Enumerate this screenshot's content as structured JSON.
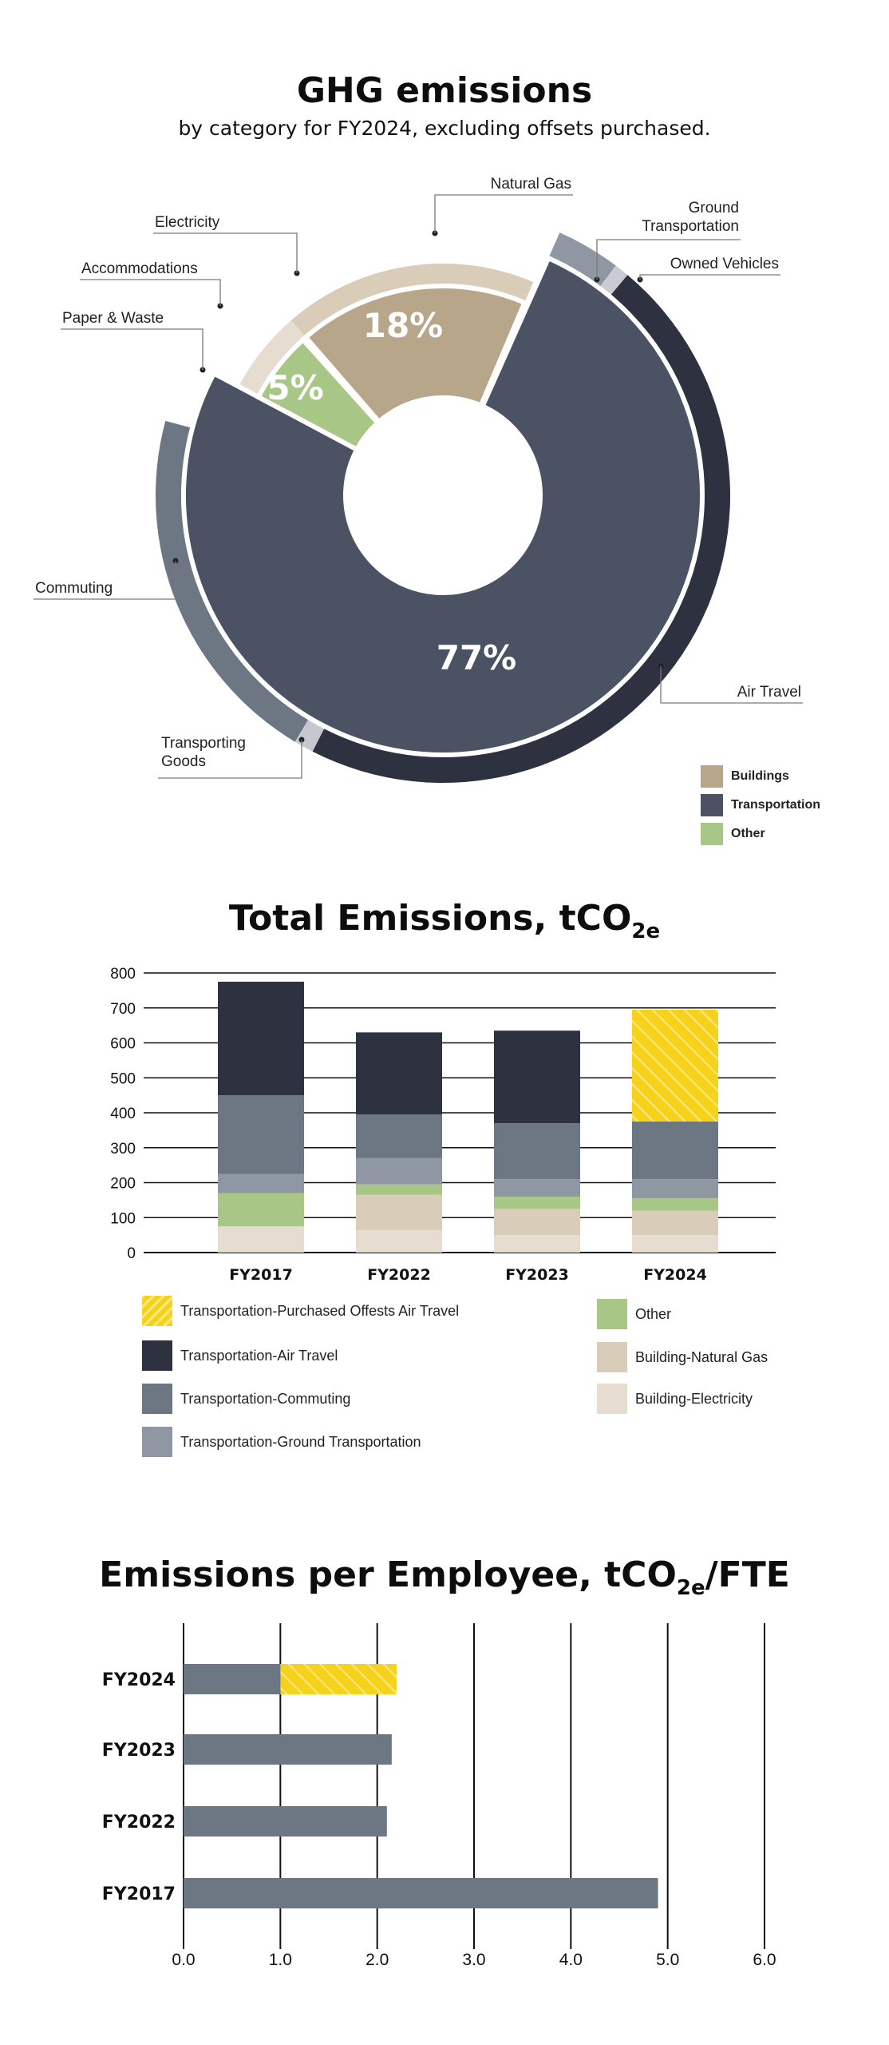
{
  "chart_data": [
    {
      "type": "pie",
      "title": "GHG emissions",
      "subtitle": "by category for FY2024, excluding offsets purchased.",
      "groups": [
        {
          "name": "Buildings",
          "percent_label": "18%",
          "value": 18,
          "color": "#b8a68a"
        },
        {
          "name": "Transportation",
          "percent_label": "77%",
          "value": 77,
          "color": "#4a5263"
        },
        {
          "name": "Other",
          "percent_label": "5%",
          "value": 5,
          "color": "#a8c686"
        }
      ],
      "categories": [
        {
          "label": "Natural Gas",
          "group": "Buildings",
          "color": "#d9ccb8"
        },
        {
          "label": "Electricity",
          "group": "Buildings",
          "color": "#e6ddd0"
        },
        {
          "label": "Accommodations",
          "group": "Other",
          "color": "#bcd5a2"
        },
        {
          "label": "Paper & Waste",
          "group": "Other",
          "color": "#d3e5c0"
        },
        {
          "label": "Commuting",
          "group": "Transportation",
          "color": "#6d7683"
        },
        {
          "label": "Transporting Goods",
          "group": "Transportation",
          "color": "#c5c9cf"
        },
        {
          "label": "Air Travel",
          "group": "Transportation",
          "color": "#2d3140"
        },
        {
          "label": "Owned Vehicles",
          "group": "Transportation",
          "color": "#c8ccd2"
        },
        {
          "label": "Ground Transportation",
          "group": "Transportation",
          "color": "#8f97a2"
        }
      ],
      "legend": [
        "Buildings",
        "Transportation",
        "Other"
      ],
      "legend_position": "bottom-right"
    },
    {
      "type": "bar",
      "stacked": true,
      "title_main": "Total Emissions, tCO",
      "title_sub": "2e",
      "categories": [
        "FY2017",
        "FY2022",
        "FY2023",
        "FY2024"
      ],
      "yticks": [
        0,
        100,
        200,
        300,
        400,
        500,
        600,
        700,
        800
      ],
      "ylim": [
        0,
        800
      ],
      "grid": true,
      "series": [
        {
          "name": "Building-Electricity",
          "color": "#e6ddd0",
          "values": [
            75,
            65,
            50,
            50
          ]
        },
        {
          "name": "Building-Natural Gas",
          "color": "#d9ccb8",
          "values": [
            0,
            100,
            75,
            70
          ]
        },
        {
          "name": "Other",
          "color": "#a8c686",
          "values": [
            95,
            30,
            35,
            35
          ]
        },
        {
          "name": "Transportation-Ground Transportation",
          "color": "#8f97a2",
          "values": [
            55,
            75,
            50,
            55
          ]
        },
        {
          "name": "Transportation-Commuting",
          "color": "#6d7683",
          "values": [
            225,
            125,
            160,
            165
          ]
        },
        {
          "name": "Transportation-Air Travel",
          "color": "#2d3140",
          "values": [
            325,
            235,
            265,
            0
          ]
        },
        {
          "name": "Transportation-Purchased Offests Air Travel",
          "color": "#f7d21a",
          "values": [
            0,
            0,
            0,
            320
          ],
          "hatched": true
        }
      ],
      "legend_order": [
        "Transportation-Purchased Offests Air Travel",
        "Transportation-Air Travel",
        "Transportation-Commuting",
        "Transportation-Ground Transportation",
        "Other",
        "Building-Natural Gas",
        "Building-Electricity"
      ],
      "legend_position": "bottom"
    },
    {
      "type": "bar",
      "orientation": "horizontal",
      "stacked": true,
      "title_main": "Emissions per Employee, tCO",
      "title_sub": "2e",
      "title_tail": "/FTE",
      "categories": [
        "FY2024",
        "FY2023",
        "FY2022",
        "FY2017"
      ],
      "xticks": [
        "0.0",
        "1.0",
        "2.0",
        "3.0",
        "4.0",
        "5.0",
        "6.0"
      ],
      "xlim": [
        0,
        6
      ],
      "grid": true,
      "series": [
        {
          "name": "emissions",
          "color": "#6d7683",
          "values": [
            1.0,
            2.15,
            2.1,
            4.9
          ]
        },
        {
          "name": "offset",
          "color": "#f7d21a",
          "hatched": true,
          "values": [
            1.2,
            0,
            0,
            0
          ]
        }
      ]
    }
  ]
}
